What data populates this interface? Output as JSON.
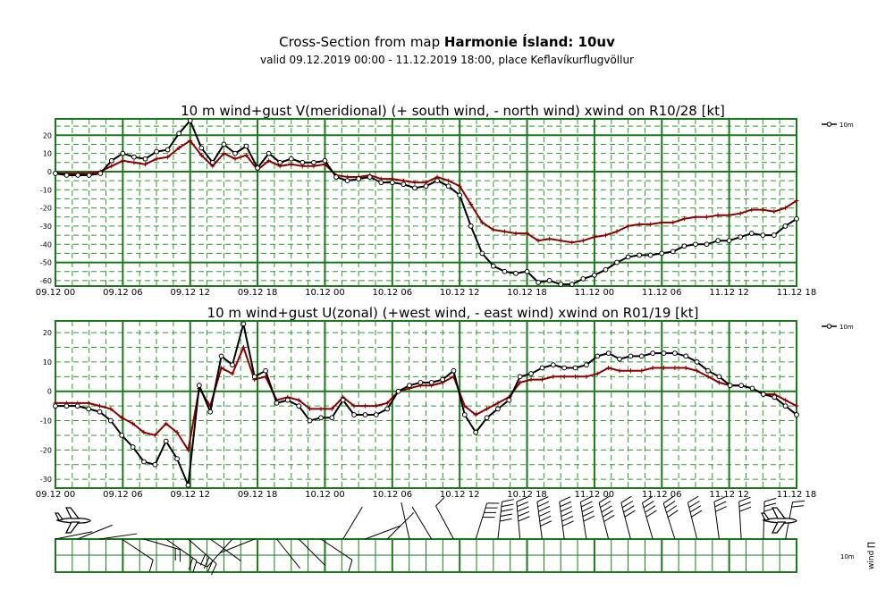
{
  "header": {
    "title_prefix": "Cross-Section from map",
    "title_bold": "Harmonie Ísland: 10uv",
    "subtitle": "valid 09.12.2019 00:00 - 11.12.2019 18:00, place Keflavíkurflugvöllur"
  },
  "colors": {
    "grid": "#1a7a1a",
    "grid_dash": "#2e9a2e",
    "series_10m": "#000000",
    "series_red": "#8b0000"
  },
  "x_ticks": [
    "09.12 00",
    "09.12 06",
    "09.12 12",
    "09.12 18",
    "10.12 00",
    "10.12 06",
    "10.12 12",
    "10.12 18",
    "11.12 00",
    "11.12 06",
    "11.12 12",
    "11.12 18"
  ],
  "legend_label": "10m",
  "chart_data": [
    {
      "type": "line",
      "title": "10 m wind+gust V(meridional) (+ south wind, - north wind) xwind on R10/28 [kt]",
      "ylim": [
        -63,
        29
      ],
      "y_ticks": [
        20,
        10,
        0,
        -10,
        -20,
        -30,
        -40,
        -50,
        -60
      ],
      "y_major": [
        20,
        0,
        -50
      ],
      "grid": true,
      "legend": "top-right",
      "series": [
        {
          "name": "10m",
          "color": "#000000",
          "marker": "circle",
          "values": [
            -1,
            -2,
            -2,
            -2,
            -1,
            6,
            10,
            8,
            7,
            11,
            12,
            21,
            28,
            13,
            5,
            15,
            10,
            14,
            2,
            10,
            5,
            7,
            5,
            5,
            6,
            -3,
            -5,
            -4,
            -3,
            -6,
            -6,
            -7,
            -9,
            -8,
            -5,
            -8,
            -13,
            -30,
            -45,
            -52,
            -55,
            -56,
            -55,
            -61,
            -60,
            -62,
            -62,
            -59,
            -57,
            -54,
            -50,
            -47,
            -46,
            -46,
            -45,
            -44,
            -41,
            -40,
            -40,
            -38,
            -38,
            -36,
            -34,
            -35,
            -35,
            -30,
            -26
          ]
        },
        {
          "color": "#8b0000",
          "marker": "plus",
          "values": [
            -1,
            -1,
            -1,
            -1,
            0,
            3,
            6,
            5,
            4,
            7,
            8,
            13,
            17,
            9,
            3,
            10,
            7,
            9,
            1,
            6,
            3,
            4,
            3,
            3,
            4,
            -2,
            -3,
            -3,
            -2,
            -4,
            -4,
            -5,
            -6,
            -6,
            -3,
            -5,
            -8,
            -18,
            -28,
            -32,
            -33,
            -34,
            -34,
            -38,
            -37,
            -38,
            -39,
            -38,
            -36,
            -35,
            -33,
            -30,
            -29,
            -29,
            -28,
            -28,
            -26,
            -25,
            -25,
            -24,
            -24,
            -23,
            -21,
            -21,
            -22,
            -20,
            -16
          ]
        }
      ]
    },
    {
      "type": "line",
      "title": "10 m wind+gust U(zonal) (+west wind, - east wind) xwind on R01/19 [kt]",
      "ylim": [
        -33,
        24
      ],
      "y_ticks": [
        20,
        10,
        0,
        -10,
        -20,
        -30
      ],
      "y_major": [
        0
      ],
      "grid": true,
      "legend": "top-right",
      "series": [
        {
          "name": "10m",
          "color": "#000000",
          "marker": "circle",
          "values": [
            -5,
            -5,
            -5,
            -6,
            -7,
            -10,
            -15,
            -19,
            -24,
            -25,
            -17,
            -23,
            -32,
            2,
            -7,
            12,
            9,
            23,
            5,
            7,
            -4,
            -3,
            -5,
            -10,
            -9,
            -9,
            -3,
            -8,
            -8,
            -8,
            -6,
            0,
            2,
            3,
            3,
            4,
            7,
            -8,
            -14,
            -9,
            -6,
            -3,
            5,
            6,
            8,
            9,
            8,
            8,
            9,
            12,
            13,
            11,
            12,
            12,
            13,
            13,
            13,
            12,
            10,
            7,
            5,
            2,
            2,
            1,
            -1,
            -2,
            -5,
            -8
          ]
        },
        {
          "color": "#8b0000",
          "marker": "plus",
          "values": [
            -4,
            -4,
            -4,
            -4,
            -5,
            -6,
            -9,
            -11,
            -14,
            -15,
            -11,
            -14,
            -20,
            1,
            -5,
            8,
            6,
            15,
            4,
            5,
            -3,
            -2,
            -3,
            -6,
            -6,
            -6,
            -2,
            -5,
            -5,
            -5,
            -4,
            0,
            1,
            2,
            2,
            3,
            5,
            -5,
            -8,
            -6,
            -4,
            -2,
            3,
            4,
            4,
            5,
            5,
            5,
            5,
            6,
            8,
            7,
            7,
            7,
            8,
            8,
            8,
            8,
            7,
            5,
            3,
            2,
            2,
            1,
            -1,
            -1,
            -3,
            -5
          ]
        }
      ]
    }
  ],
  "barbs_right_label": "wind ∏",
  "barbs_left_label": "10m"
}
